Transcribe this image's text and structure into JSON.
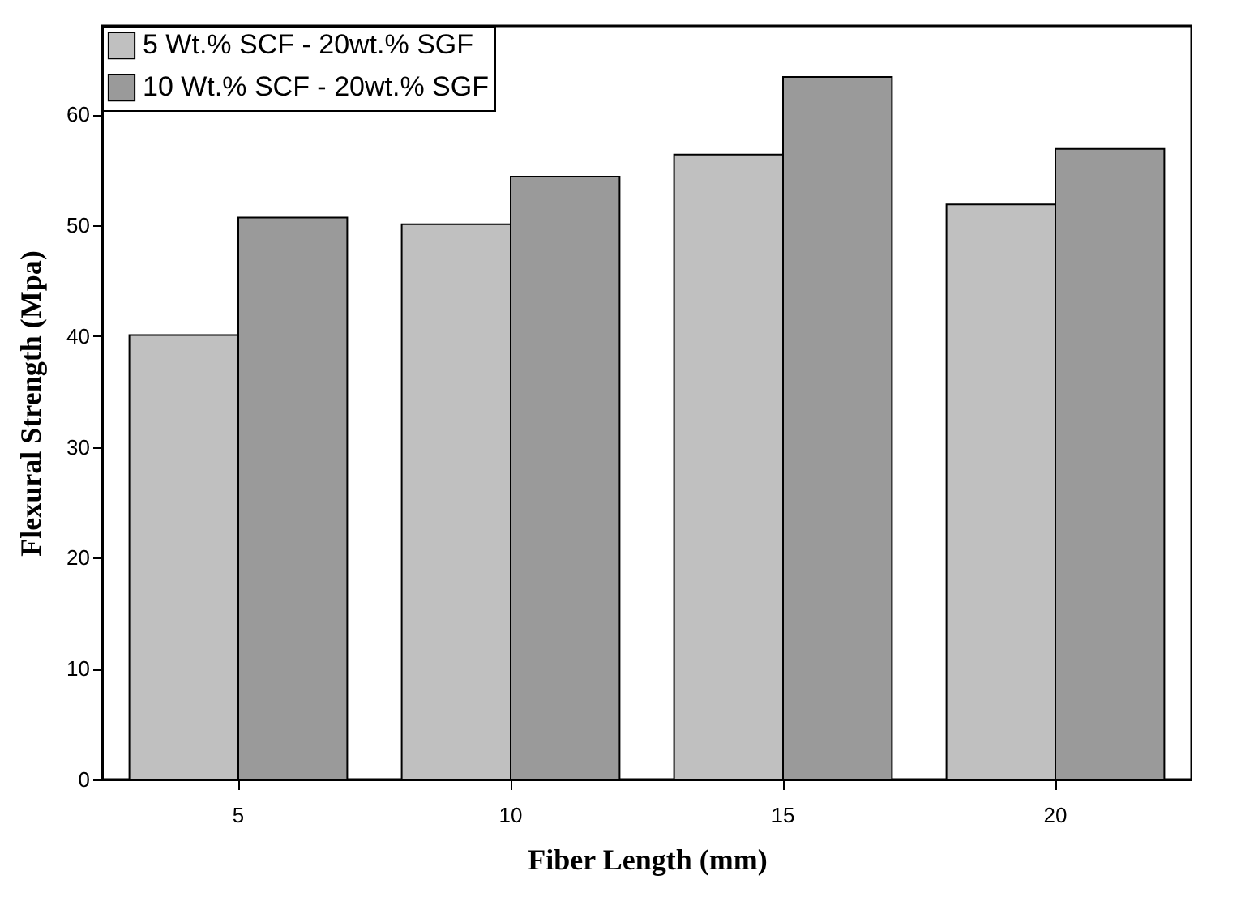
{
  "chart_data": {
    "type": "bar",
    "xlabel": "Fiber Length (mm)",
    "ylabel": "Flexural Strength (Mpa)",
    "categories": [
      "5",
      "10",
      "15",
      "20"
    ],
    "series": [
      {
        "name": "5 Wt.% SCF - 20wt.% SGF",
        "color": "#c0c0c0",
        "values": [
          40.1,
          50.1,
          56.4,
          51.9
        ]
      },
      {
        "name": "10 Wt.% SCF - 20wt.% SGF",
        "color": "#9a9a9a",
        "values": [
          50.7,
          54.4,
          63.4,
          56.9
        ]
      }
    ],
    "ylim": [
      0,
      68
    ],
    "yticks": [
      0,
      10,
      20,
      30,
      40,
      50,
      60
    ],
    "grid": false,
    "legend": "top left"
  }
}
